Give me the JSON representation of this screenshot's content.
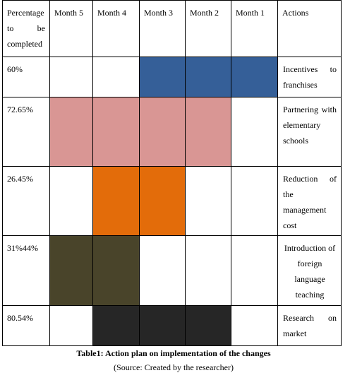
{
  "headers": [
    "Percentage to be completed",
    "Month 5",
    "Month 4",
    "Month 3",
    "Month 2",
    "Month 1",
    "Actions"
  ],
  "rows": [
    {
      "percentage": "60%",
      "action": "Incentives to franchises",
      "color": "#355f98",
      "active": [
        false,
        false,
        true,
        true,
        true
      ]
    },
    {
      "percentage": "72.65%",
      "action": "Partnering with elementary schools",
      "color": "#d99694",
      "active": [
        true,
        true,
        true,
        true,
        false
      ]
    },
    {
      "percentage": "26.45%",
      "action": "Reduction of the management cost",
      "color": "#e36c0a",
      "active": [
        false,
        true,
        true,
        false,
        false
      ]
    },
    {
      "percentage": "31%44%",
      "action": "Introduction of foreign language teaching",
      "color": "#49442a",
      "active": [
        true,
        true,
        false,
        false,
        false
      ]
    },
    {
      "percentage": "80.54%",
      "action": "Research on market",
      "color": "#262626",
      "active": [
        false,
        true,
        true,
        true,
        false
      ]
    }
  ],
  "caption": "Table1: Action plan on implementation of the changes",
  "source": "(Source: Created by the researcher)"
}
